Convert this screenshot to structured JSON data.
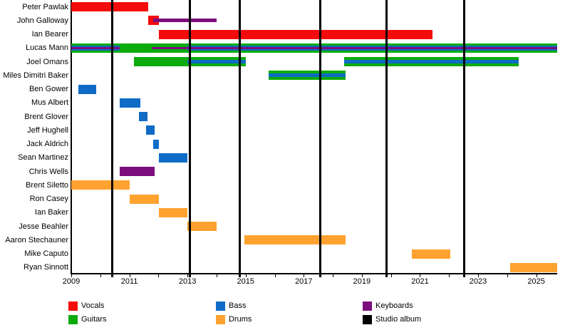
{
  "chart_data": {
    "type": "bar",
    "subtype": "horizontal-gantt-band-member-timeline",
    "title": "",
    "x_axis": {
      "min_year": 2009,
      "max_year": 2025.72,
      "tick_interval": 1,
      "label_interval": 2,
      "year_labels": [
        "2009",
        "2011",
        "2013",
        "2015",
        "2017",
        "2019",
        "2021",
        "2023",
        "2025"
      ]
    },
    "roles": {
      "vocals": "#f40b0b",
      "guitars": "#0cab0c",
      "bass": "#0f6bc6",
      "drums": "#ffa22f",
      "keyboards": "#7c0d7c",
      "album": "#000000"
    },
    "legend": [
      {
        "label": "Vocals",
        "role": "vocals"
      },
      {
        "label": "Guitars",
        "role": "guitars"
      },
      {
        "label": "Bass",
        "role": "bass"
      },
      {
        "label": "Drums",
        "role": "drums"
      },
      {
        "label": "Keyboards",
        "role": "keyboards"
      },
      {
        "label": "Studio album",
        "role": "album"
      }
    ],
    "album_release_lines": [
      2010.4,
      2013.09,
      2014.81,
      2017.58,
      2019.86,
      2022.53
    ],
    "members": [
      {
        "name": "Peter Pawlak",
        "bars": [
          {
            "role": "vocals",
            "start": 2009.0,
            "end": 2011.65
          }
        ]
      },
      {
        "name": "John Galloway",
        "bars": [
          {
            "role": "vocals",
            "start": 2011.65,
            "end": 2012.02
          },
          {
            "role": "keyboards",
            "start": 2011.82,
            "end": 2014.0,
            "thin": true
          }
        ]
      },
      {
        "name": "Ian Bearer",
        "bars": [
          {
            "role": "vocals",
            "start": 2012.02,
            "end": 2021.42
          }
        ]
      },
      {
        "name": "Lucas Mann",
        "bars": [
          {
            "role": "guitars",
            "start": 2009.0,
            "end": 2025.72
          },
          {
            "role": "bass",
            "start": 2009.0,
            "end": 2010.67,
            "inset": 3
          },
          {
            "role": "bass",
            "start": 2013.0,
            "end": 2025.72,
            "inset": 3
          },
          {
            "role": "keyboards",
            "start": 2009.0,
            "end": 2010.67,
            "inset": 5
          },
          {
            "role": "keyboards",
            "start": 2011.77,
            "end": 2025.72,
            "inset": 5
          }
        ]
      },
      {
        "name": "Joel Omans",
        "bars": [
          {
            "role": "guitars",
            "start": 2011.16,
            "end": 2015.0
          },
          {
            "role": "bass",
            "start": 2013.0,
            "end": 2015.0,
            "inset": 4
          },
          {
            "role": "guitars",
            "start": 2018.4,
            "end": 2024.4
          },
          {
            "role": "bass",
            "start": 2018.4,
            "end": 2024.4,
            "inset": 4
          }
        ]
      },
      {
        "name": "Miles Dimitri Baker",
        "bars": [
          {
            "role": "guitars",
            "start": 2015.8,
            "end": 2018.45
          },
          {
            "role": "bass",
            "start": 2015.8,
            "end": 2018.45,
            "inset": 4
          }
        ]
      },
      {
        "name": "Ben Gower",
        "bars": [
          {
            "role": "bass",
            "start": 2009.25,
            "end": 2009.86
          }
        ]
      },
      {
        "name": "Mus Albert",
        "bars": [
          {
            "role": "bass",
            "start": 2010.67,
            "end": 2011.38
          }
        ]
      },
      {
        "name": "Brent Glover",
        "bars": [
          {
            "role": "bass",
            "start": 2011.33,
            "end": 2011.62
          }
        ]
      },
      {
        "name": "Jeff Hughell",
        "bars": [
          {
            "role": "bass",
            "start": 2011.57,
            "end": 2011.87
          }
        ]
      },
      {
        "name": "Jack Aldrich",
        "bars": [
          {
            "role": "bass",
            "start": 2011.82,
            "end": 2012.02
          }
        ]
      },
      {
        "name": "Sean Martinez",
        "bars": [
          {
            "role": "bass",
            "start": 2012.02,
            "end": 2013.0
          }
        ]
      },
      {
        "name": "Chris Wells",
        "bars": [
          {
            "role": "keyboards",
            "start": 2010.67,
            "end": 2011.87
          }
        ]
      },
      {
        "name": "Brent Siletto",
        "bars": [
          {
            "role": "drums",
            "start": 2009.0,
            "end": 2011.02
          }
        ]
      },
      {
        "name": "Ron Casey",
        "bars": [
          {
            "role": "drums",
            "start": 2011.0,
            "end": 2012.02
          }
        ]
      },
      {
        "name": "Ian Baker",
        "bars": [
          {
            "role": "drums",
            "start": 2012.02,
            "end": 2013.0
          }
        ]
      },
      {
        "name": "Jesse Beahler",
        "bars": [
          {
            "role": "drums",
            "start": 2013.0,
            "end": 2014.0
          }
        ]
      },
      {
        "name": "Aaron Stechauner",
        "bars": [
          {
            "role": "drums",
            "start": 2014.95,
            "end": 2018.45
          }
        ]
      },
      {
        "name": "Mike Caputo",
        "bars": [
          {
            "role": "drums",
            "start": 2020.72,
            "end": 2022.05
          }
        ]
      },
      {
        "name": "Ryan Sinnott",
        "bars": [
          {
            "role": "drums",
            "start": 2024.1,
            "end": 2025.72
          }
        ]
      }
    ]
  }
}
